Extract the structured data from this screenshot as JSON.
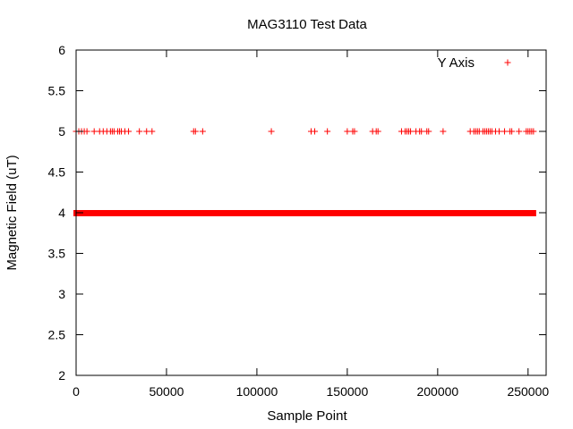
{
  "chart_data": {
    "type": "scatter",
    "title": "MAG3110 Test Data",
    "xlabel": "Sample Point",
    "ylabel": "Magnetic Field (uT)",
    "xlim": [
      0,
      260000
    ],
    "ylim": [
      2,
      6
    ],
    "xticks": [
      0,
      50000,
      100000,
      150000,
      200000,
      250000
    ],
    "xtick_labels": [
      "0",
      "50000",
      "100000",
      "150000",
      "200000",
      "250000"
    ],
    "yticks": [
      2,
      2.5,
      3,
      3.5,
      4,
      4.5,
      5,
      5.5,
      6
    ],
    "ytick_labels": [
      "2",
      "2.5",
      "3",
      "3.5",
      "4",
      "4.5",
      "5",
      "5.5",
      "6"
    ],
    "grid": false,
    "legend_position": "top-right",
    "marker": "plus",
    "colors": {
      "series": "#ff0000",
      "axes": "#000000",
      "background": "#ffffff"
    },
    "series": [
      {
        "name": "Y Axis",
        "value_4_range": [
          0,
          253000
        ],
        "points": [
          [
            0,
            5
          ],
          [
            1500,
            5
          ],
          [
            3000,
            5
          ],
          [
            4500,
            5
          ],
          [
            6000,
            5
          ],
          [
            10000,
            5
          ],
          [
            13000,
            5
          ],
          [
            15000,
            5
          ],
          [
            17000,
            5
          ],
          [
            19000,
            5
          ],
          [
            20000,
            5
          ],
          [
            21000,
            5
          ],
          [
            23000,
            5
          ],
          [
            24000,
            5
          ],
          [
            25000,
            5
          ],
          [
            27000,
            5
          ],
          [
            29000,
            5
          ],
          [
            35000,
            5
          ],
          [
            39000,
            5
          ],
          [
            42000,
            5
          ],
          [
            65000,
            5
          ],
          [
            66000,
            5
          ],
          [
            70000,
            5
          ],
          [
            108000,
            5
          ],
          [
            130000,
            5
          ],
          [
            132000,
            5
          ],
          [
            139000,
            5
          ],
          [
            150000,
            5
          ],
          [
            153000,
            5
          ],
          [
            154000,
            5
          ],
          [
            164000,
            5
          ],
          [
            166000,
            5
          ],
          [
            167000,
            5
          ],
          [
            180000,
            5
          ],
          [
            182000,
            5
          ],
          [
            183000,
            5
          ],
          [
            184000,
            5
          ],
          [
            185000,
            5
          ],
          [
            188000,
            5
          ],
          [
            190000,
            5
          ],
          [
            191000,
            5
          ],
          [
            194000,
            5
          ],
          [
            195000,
            5
          ],
          [
            203000,
            5
          ],
          [
            218000,
            5
          ],
          [
            220000,
            5
          ],
          [
            221000,
            5
          ],
          [
            222000,
            5
          ],
          [
            223000,
            5
          ],
          [
            225000,
            5
          ],
          [
            226000,
            5
          ],
          [
            227000,
            5
          ],
          [
            228000,
            5
          ],
          [
            229000,
            5
          ],
          [
            230000,
            5
          ],
          [
            232000,
            5
          ],
          [
            234000,
            5
          ],
          [
            237000,
            5
          ],
          [
            240000,
            5
          ],
          [
            241000,
            5
          ],
          [
            245000,
            5
          ],
          [
            249000,
            5
          ],
          [
            250000,
            5
          ],
          [
            251000,
            5
          ],
          [
            252000,
            5
          ],
          [
            253000,
            5
          ]
        ]
      }
    ]
  }
}
